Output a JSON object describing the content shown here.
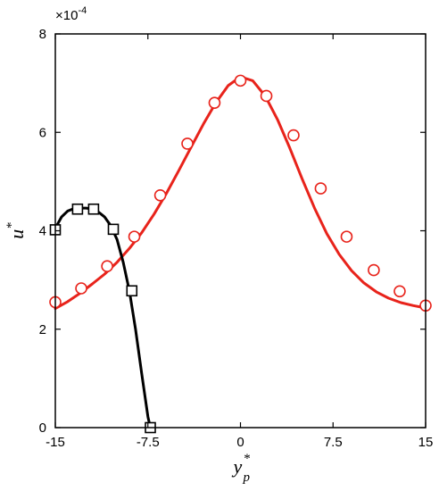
{
  "chart_data": {
    "type": "line",
    "xlabel": {
      "main": "y",
      "sup": "*",
      "sub": "p"
    },
    "ylabel": {
      "main": "u",
      "sup": "*"
    },
    "y_scale_label": {
      "base": "×10",
      "exp": "-4"
    },
    "xlim": [
      -15,
      15
    ],
    "ylim": [
      0,
      8
    ],
    "x_ticks": [
      -15,
      -7.5,
      0,
      7.5,
      15
    ],
    "x_tick_labels": [
      "-15",
      "-7.5",
      "0",
      "7.5",
      "15"
    ],
    "y_ticks": [
      0,
      2,
      4,
      6,
      8
    ],
    "y_tick_labels": [
      "0",
      "2",
      "4",
      "6",
      "8"
    ],
    "grid": false,
    "legend": "none",
    "series": [
      {
        "color": "#e8231b",
        "marker": "circle",
        "line_x": [
          -15,
          -14,
          -13,
          -12,
          -11,
          -10,
          -9,
          -8,
          -7,
          -6,
          -5,
          -4,
          -3,
          -2,
          -1,
          0,
          1,
          2,
          3,
          4,
          5,
          6,
          7,
          8,
          9,
          10,
          11,
          12,
          13,
          14,
          15
        ],
        "line_y": [
          2.42,
          2.56,
          2.73,
          2.92,
          3.12,
          3.36,
          3.64,
          3.96,
          4.34,
          4.76,
          5.22,
          5.7,
          6.17,
          6.6,
          6.95,
          7.13,
          7.05,
          6.74,
          6.26,
          5.68,
          5.05,
          4.46,
          3.94,
          3.52,
          3.19,
          2.94,
          2.76,
          2.63,
          2.54,
          2.48,
          2.43
        ],
        "points_x": [
          -15,
          -12.9,
          -10.8,
          -8.6,
          -6.5,
          -4.3,
          -2.1,
          0,
          2.1,
          4.3,
          6.5,
          8.6,
          10.8,
          12.9,
          15
        ],
        "points_y": [
          2.55,
          2.83,
          3.28,
          3.88,
          4.72,
          5.77,
          6.6,
          7.05,
          6.74,
          5.94,
          4.86,
          3.88,
          3.2,
          2.77,
          2.48
        ]
      },
      {
        "color": "#000000",
        "marker": "square",
        "line_x": [
          -15,
          -14.5,
          -14,
          -13.5,
          -13,
          -12.5,
          -12,
          -11.5,
          -11,
          -10.5,
          -10,
          -9.5,
          -9,
          -8.5,
          -8,
          -7.5,
          -7.3
        ],
        "line_y": [
          4.05,
          4.28,
          4.4,
          4.45,
          4.46,
          4.46,
          4.44,
          4.38,
          4.28,
          4.1,
          3.82,
          3.36,
          2.78,
          2.0,
          1.1,
          0.22,
          0
        ],
        "points_x": [
          -15,
          -13.2,
          -11.9,
          -10.3,
          -8.8,
          -7.3
        ],
        "points_y": [
          4.02,
          4.44,
          4.44,
          4.03,
          2.78,
          0
        ]
      }
    ]
  }
}
